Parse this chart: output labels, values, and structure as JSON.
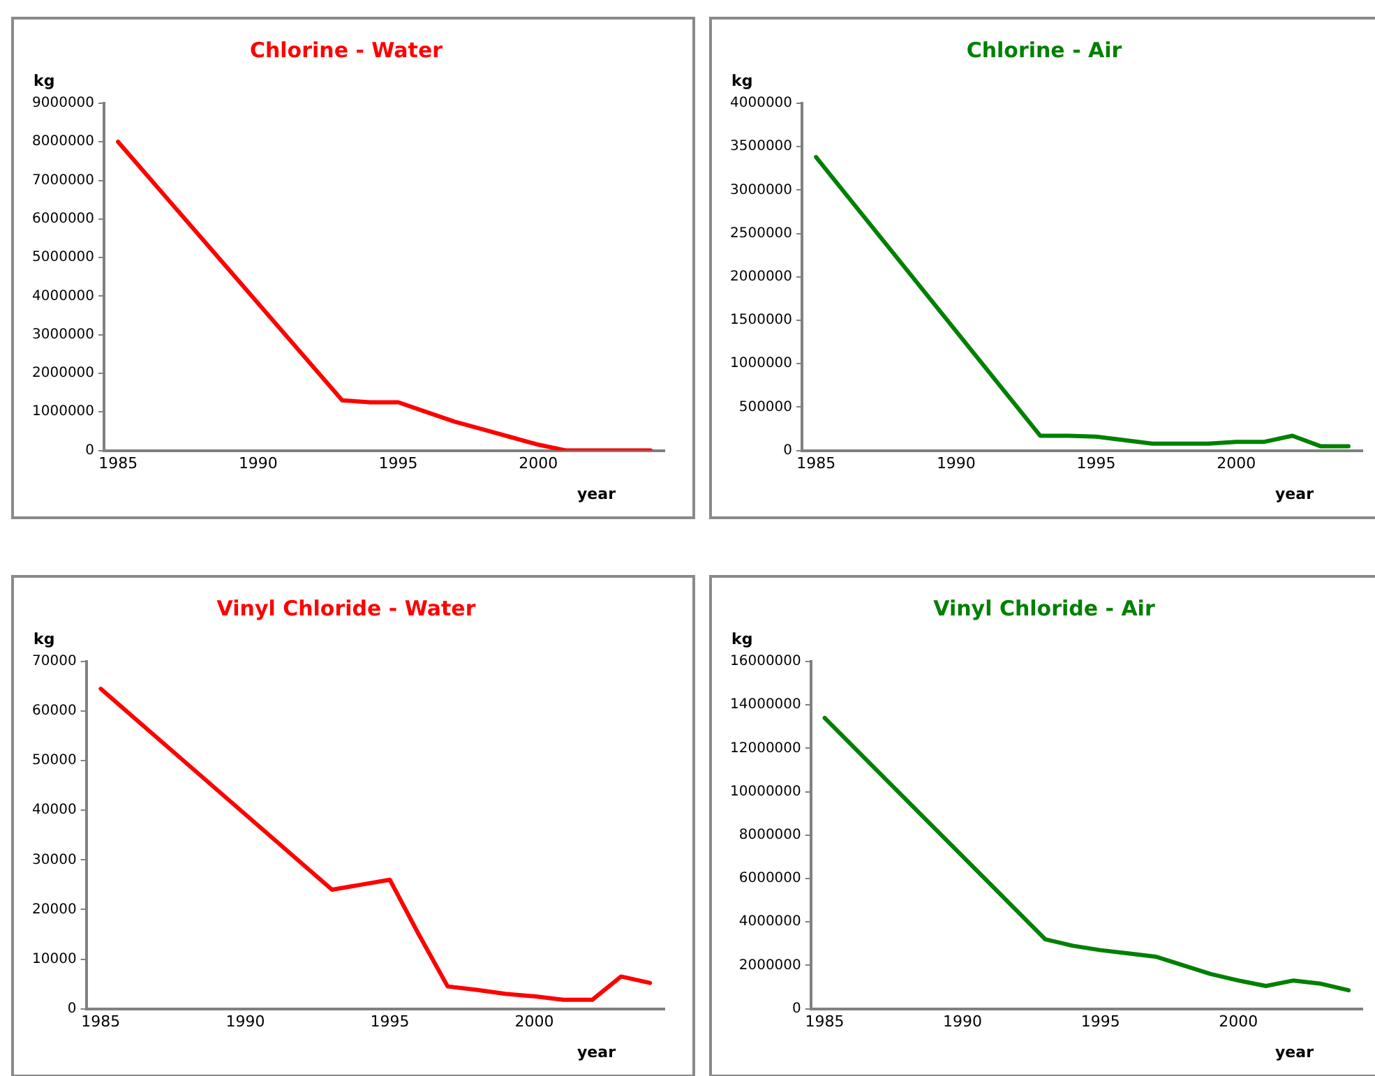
{
  "chart_data": [
    {
      "type": "line",
      "title": "Chlorine - Water",
      "ylabel": "kg",
      "xlabel": "year",
      "x": [
        1985,
        1993,
        1994,
        1995,
        1996,
        1997,
        1998,
        1999,
        2000,
        2001,
        2002,
        2003,
        2004
      ],
      "series": [
        {
          "color": "#ff0000",
          "values": [
            8000000,
            1300000,
            1250000,
            1250000,
            1000000,
            750000,
            550000,
            350000,
            150000,
            0,
            0,
            0,
            0
          ]
        }
      ],
      "xlim": [
        1984.5,
        2004.5
      ],
      "xticks": [
        1985,
        1990,
        1995,
        2000
      ],
      "ylim": [
        0,
        9000000
      ],
      "yticks": [
        0,
        1000000,
        2000000,
        3000000,
        4000000,
        5000000,
        6000000,
        7000000,
        8000000,
        9000000
      ],
      "grid": false
    },
    {
      "type": "line",
      "title": "Chlorine - Air",
      "ylabel": "kg",
      "xlabel": "year",
      "x": [
        1985,
        1993,
        1994,
        1995,
        1996,
        1997,
        1998,
        1999,
        2000,
        2001,
        2002,
        2003,
        2004
      ],
      "series": [
        {
          "color": "#008000",
          "values": [
            3380000,
            170000,
            170000,
            160000,
            120000,
            80000,
            80000,
            80000,
            100000,
            100000,
            170000,
            50000,
            50000
          ]
        }
      ],
      "xlim": [
        1984.5,
        2004.5
      ],
      "xticks": [
        1985,
        1990,
        1995,
        2000
      ],
      "ylim": [
        0,
        4000000
      ],
      "yticks": [
        0,
        500000,
        1000000,
        1500000,
        2000000,
        2500000,
        3000000,
        3500000,
        4000000
      ],
      "grid": false
    },
    {
      "type": "line",
      "title": "Vinyl Chloride - Water",
      "ylabel": "kg",
      "xlabel": "year",
      "x": [
        1985,
        1993,
        1994,
        1995,
        1996,
        1997,
        1998,
        1999,
        2000,
        2001,
        2002,
        2003,
        2004
      ],
      "series": [
        {
          "color": "#ff0000",
          "values": [
            64500,
            24000,
            25000,
            26000,
            15000,
            4500,
            3800,
            3000,
            2500,
            1800,
            1800,
            6500,
            5200
          ]
        }
      ],
      "xlim": [
        1984.5,
        2004.5
      ],
      "xticks": [
        1985,
        1990,
        1995,
        2000
      ],
      "ylim": [
        0,
        70000
      ],
      "yticks": [
        0,
        10000,
        20000,
        30000,
        40000,
        50000,
        60000,
        70000
      ],
      "grid": false
    },
    {
      "type": "line",
      "title": "Vinyl Chloride - Air",
      "ylabel": "kg",
      "xlabel": "year",
      "x": [
        1985,
        1993,
        1994,
        1995,
        1996,
        1997,
        1998,
        1999,
        2000,
        2001,
        2002,
        2003,
        2004
      ],
      "series": [
        {
          "color": "#008000",
          "values": [
            13400000,
            3200000,
            2900000,
            2700000,
            2550000,
            2400000,
            2000000,
            1600000,
            1300000,
            1050000,
            1300000,
            1150000,
            850000
          ]
        }
      ],
      "xlim": [
        1984.5,
        2004.5
      ],
      "xticks": [
        1985,
        1990,
        1995,
        2000
      ],
      "ylim": [
        0,
        16000000
      ],
      "yticks": [
        0,
        2000000,
        4000000,
        6000000,
        8000000,
        10000000,
        12000000,
        14000000,
        16000000
      ],
      "grid": false
    }
  ]
}
